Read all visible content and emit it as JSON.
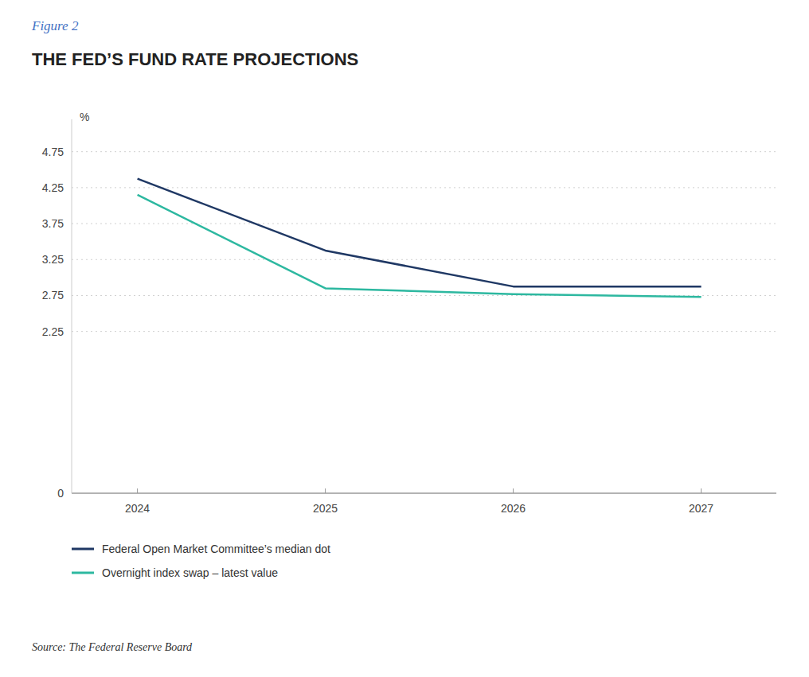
{
  "chart_data": {
    "type": "line",
    "title": "THE FED’S FUND RATE PROJECTIONS",
    "annotations": [
      "Figure 2",
      "Source: The Federal Reserve Board"
    ],
    "y_label": "%",
    "x": [
      2024,
      2025,
      2026,
      2027
    ],
    "series": [
      {
        "name": "Federal Open Market Committee’s median dot",
        "color": "#1f3864",
        "values": [
          4.375,
          3.375,
          2.875,
          2.875
        ]
      },
      {
        "name": "Overnight index swap – latest value",
        "color": "#2db8a0",
        "values": [
          4.15,
          2.85,
          2.77,
          2.73
        ]
      }
    ],
    "xlim": [
      2023.65,
      2027.4
    ],
    "ylim": [
      0,
      5.2
    ],
    "xticks": [
      2024,
      2025,
      2026,
      2027
    ],
    "yticks": [
      0,
      2.25,
      2.75,
      3.25,
      3.75,
      4.25,
      4.75
    ],
    "grid": true,
    "legend": "bottom"
  }
}
